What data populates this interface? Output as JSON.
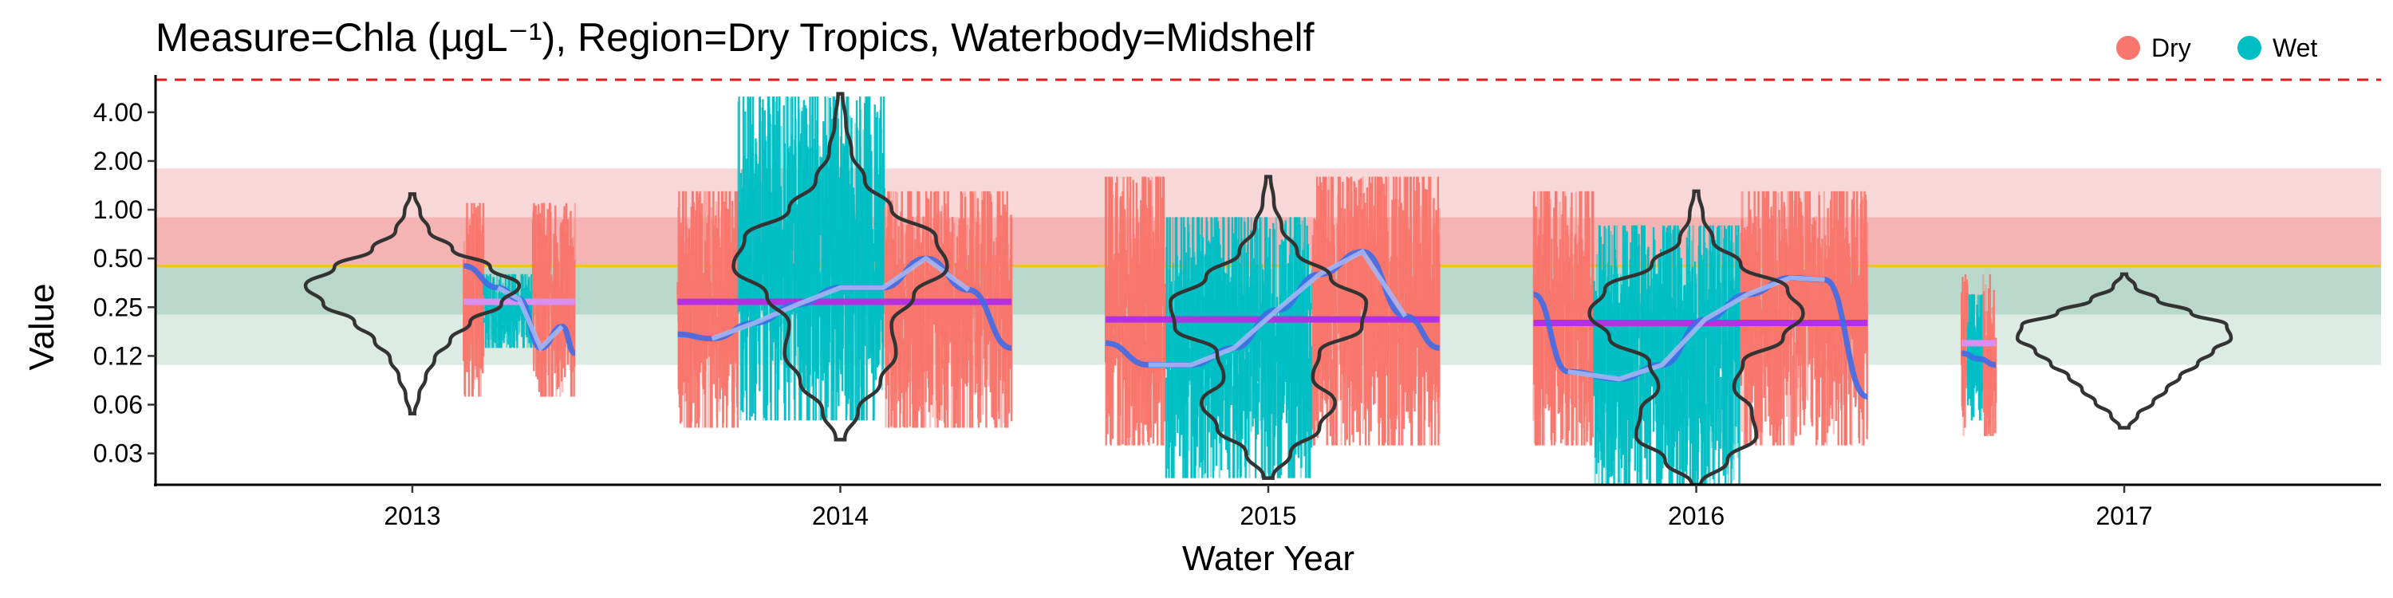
{
  "chart_data": {
    "type": "violin",
    "title": "Measure=Chla (µgL⁻¹), Region=Dry Tropics, Waterbody=Midshelf",
    "xlabel": "Water Year",
    "ylabel": "Value",
    "scale_y": "log",
    "ylim": [
      0.02,
      6.5
    ],
    "xlim": [
      2012.4,
      2017.6
    ],
    "x_ticks": [
      2013,
      2014,
      2015,
      2016,
      2017
    ],
    "y_ticks": [
      {
        "value": 4.0,
        "label": "4.00"
      },
      {
        "value": 2.0,
        "label": "2.00"
      },
      {
        "value": 1.0,
        "label": "1.00"
      },
      {
        "value": 0.5,
        "label": "0.50"
      },
      {
        "value": 0.25,
        "label": "0.25"
      },
      {
        "value": 0.125,
        "label": "0.12"
      },
      {
        "value": 0.0625,
        "label": "0.06"
      },
      {
        "value": 0.03125,
        "label": "0.03"
      }
    ],
    "legend": {
      "position": "top-right",
      "entries": [
        {
          "name": "Dry",
          "color": "#F8766D"
        },
        {
          "name": "Wet",
          "color": "#00BFC4"
        }
      ]
    },
    "reference_lines": [
      {
        "value": 0.45,
        "color": "#F2C12E",
        "style": "solid"
      },
      {
        "value": 6.5,
        "color": "#E41A1C",
        "style": "dashed"
      }
    ],
    "bands": [
      {
        "from": 0.9,
        "to": 1.8,
        "color": "#F8D7D8"
      },
      {
        "from": 0.45,
        "to": 0.9,
        "color": "#F4B4B4"
      },
      {
        "from": 0.225,
        "to": 0.45,
        "color": "#B9D8CB"
      },
      {
        "from": 0.11,
        "to": 0.225,
        "color": "#DCEBE4"
      }
    ],
    "series": [
      {
        "name": "Dry",
        "color": "#F8766D"
      },
      {
        "name": "Wet",
        "color": "#00BFC4"
      }
    ],
    "years": [
      {
        "year": 2013,
        "violin": {
          "ymin": 0.055,
          "ymax": 1.25,
          "widths": [
            0.02,
            0.06,
            0.12,
            0.2,
            0.34,
            0.52,
            0.8,
            0.96,
            0.7,
            0.36,
            0.15,
            0.07,
            0.02
          ]
        },
        "data_span": [
          2013.12,
          2013.38
        ],
        "dry": {
          "low": 0.07,
          "high": 1.1
        },
        "wet": {
          "low": 0.14,
          "high": 0.4
        },
        "mean_line": {
          "value": 0.27,
          "color": "#DA8FF0"
        },
        "trend": [
          [
            2013.12,
            0.45
          ],
          [
            2013.2,
            0.33
          ],
          [
            2013.25,
            0.28
          ],
          [
            2013.3,
            0.14
          ],
          [
            2013.35,
            0.19
          ],
          [
            2013.38,
            0.13
          ]
        ]
      },
      {
        "year": 2014,
        "violin": {
          "ymin": 0.038,
          "ymax": 5.2,
          "widths": [
            0.04,
            0.16,
            0.36,
            0.5,
            0.46,
            0.66,
            0.96,
            0.86,
            0.46,
            0.22,
            0.1,
            0.05,
            0.02
          ]
        },
        "data_span": [
          2013.62,
          2014.4
        ],
        "dry": {
          "low": 0.045,
          "high": 1.3
        },
        "wet": {
          "low": 0.05,
          "high": 5.0
        },
        "mean_line": {
          "value": 0.27,
          "color": "#B431E0"
        },
        "trend": [
          [
            2013.62,
            0.17
          ],
          [
            2013.7,
            0.16
          ],
          [
            2013.8,
            0.2
          ],
          [
            2013.9,
            0.26
          ],
          [
            2014.0,
            0.33
          ],
          [
            2014.1,
            0.33
          ],
          [
            2014.2,
            0.5
          ],
          [
            2014.3,
            0.32
          ],
          [
            2014.4,
            0.14
          ]
        ]
      },
      {
        "year": 2015,
        "violin": {
          "ymin": 0.022,
          "ymax": 1.6,
          "widths": [
            0.04,
            0.2,
            0.46,
            0.6,
            0.4,
            0.46,
            0.84,
            0.88,
            0.56,
            0.26,
            0.12,
            0.05,
            0.02
          ]
        },
        "data_span": [
          2014.62,
          2015.4
        ],
        "dry": {
          "low": 0.035,
          "high": 1.6
        },
        "wet": {
          "low": 0.022,
          "high": 0.9
        },
        "mean_line": {
          "value": 0.21,
          "color": "#B431E0"
        },
        "trend": [
          [
            2014.62,
            0.15
          ],
          [
            2014.72,
            0.11
          ],
          [
            2014.82,
            0.11
          ],
          [
            2014.92,
            0.14
          ],
          [
            2015.02,
            0.24
          ],
          [
            2015.12,
            0.4
          ],
          [
            2015.22,
            0.55
          ],
          [
            2015.32,
            0.22
          ],
          [
            2015.4,
            0.14
          ]
        ]
      },
      {
        "year": 2016,
        "violin": {
          "ymin": 0.02,
          "ymax": 1.3,
          "widths": [
            0.04,
            0.28,
            0.54,
            0.5,
            0.34,
            0.42,
            0.78,
            0.96,
            0.82,
            0.4,
            0.15,
            0.06,
            0.02
          ]
        },
        "data_span": [
          2015.62,
          2016.4
        ],
        "dry": {
          "low": 0.035,
          "high": 1.3
        },
        "wet": {
          "low": 0.02,
          "high": 0.8
        },
        "mean_line": {
          "value": 0.2,
          "color": "#B431E0"
        },
        "trend": [
          [
            2015.62,
            0.3
          ],
          [
            2015.7,
            0.1
          ],
          [
            2015.82,
            0.09
          ],
          [
            2015.92,
            0.11
          ],
          [
            2016.02,
            0.21
          ],
          [
            2016.12,
            0.3
          ],
          [
            2016.22,
            0.38
          ],
          [
            2016.3,
            0.37
          ],
          [
            2016.4,
            0.07
          ]
        ]
      },
      {
        "year": 2017,
        "violin": {
          "ymin": 0.045,
          "ymax": 0.4,
          "widths": [
            0.04,
            0.12,
            0.26,
            0.38,
            0.5,
            0.66,
            0.8,
            0.96,
            0.92,
            0.6,
            0.3,
            0.1,
            0.02
          ]
        },
        "data_span": [
          2016.62,
          2016.7
        ],
        "dry": {
          "low": 0.04,
          "high": 0.4
        },
        "wet": {
          "low": 0.05,
          "high": 0.3
        },
        "mean_line": {
          "value": 0.15,
          "color": "#DA8FF0"
        },
        "trend": [
          [
            2016.62,
            0.13
          ],
          [
            2016.66,
            0.12
          ],
          [
            2016.7,
            0.11
          ]
        ]
      }
    ]
  }
}
